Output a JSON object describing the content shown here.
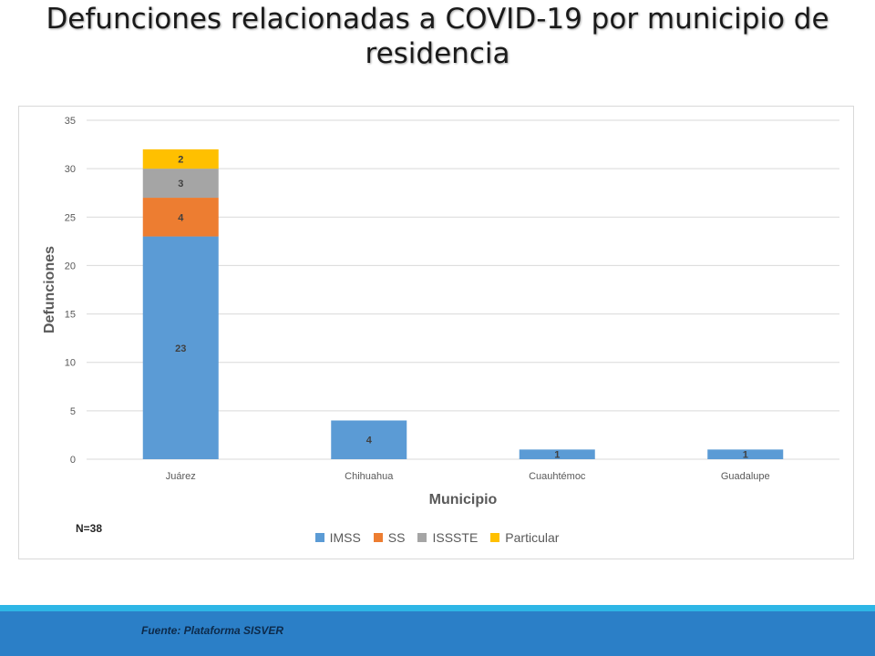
{
  "title": "Defunciones relacionadas a COVID-19 por municipio de residencia",
  "note": "N=38",
  "source": "Fuente: Plataforma  SISVER",
  "chart_data": {
    "type": "bar",
    "stacked": true,
    "categories": [
      "Juárez",
      "Chihuahua",
      "Cuauhtémoc",
      "Guadalupe"
    ],
    "series": [
      {
        "name": "IMSS",
        "color": "#5b9bd5",
        "values": [
          23,
          4,
          1,
          1
        ]
      },
      {
        "name": "SS",
        "color": "#ed7d31",
        "values": [
          4,
          0,
          0,
          0
        ]
      },
      {
        "name": "ISSSTE",
        "color": "#a5a5a5",
        "values": [
          3,
          0,
          0,
          0
        ]
      },
      {
        "name": "Particular",
        "color": "#ffc000",
        "values": [
          2,
          0,
          0,
          0
        ]
      }
    ],
    "xlabel": "Municipio",
    "ylabel": "Defunciones",
    "ylim": [
      0,
      35
    ],
    "yticks": [
      0,
      5,
      10,
      15,
      20,
      25,
      30,
      35
    ],
    "grid": true,
    "legend_position": "bottom"
  }
}
